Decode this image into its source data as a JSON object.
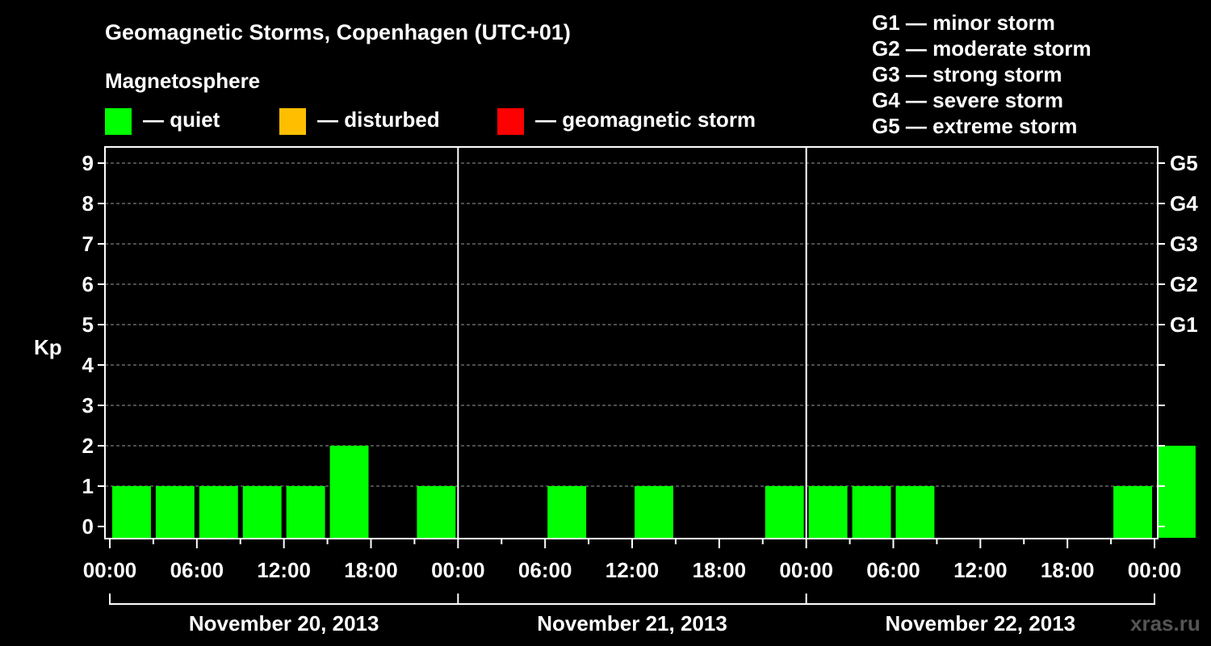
{
  "chart_data": {
    "type": "bar",
    "title": "Geomagnetic Storms, Copenhagen (UTC+01)",
    "subtitle": "Magnetosphere",
    "ylabel": "Kp",
    "ylim": [
      0,
      9
    ],
    "yticks": [
      "0",
      "1",
      "2",
      "3",
      "4",
      "5",
      "6",
      "7",
      "8",
      "9"
    ],
    "right_ticks": [
      {
        "kp": 5,
        "label": "G1"
      },
      {
        "kp": 6,
        "label": "G2"
      },
      {
        "kp": 7,
        "label": "G3"
      },
      {
        "kp": 8,
        "label": "G4"
      },
      {
        "kp": 9,
        "label": "G5"
      }
    ],
    "legend": [
      {
        "label": "— quiet",
        "color": "#00ff00"
      },
      {
        "label": "— disturbed",
        "color": "#ffbf00"
      },
      {
        "label": "— geomagnetic storm",
        "color": "#ff0000"
      }
    ],
    "storm_scale": [
      "G1 — minor storm",
      "G2 — moderate storm",
      "G3 — strong storm",
      "G4 — severe storm",
      "G5 — extreme storm"
    ],
    "xticks": [
      "00:00",
      "06:00",
      "12:00",
      "18:00",
      "00:00",
      "06:00",
      "12:00",
      "18:00",
      "00:00",
      "06:00",
      "12:00",
      "18:00",
      "00:00"
    ],
    "days": [
      "November 20, 2013",
      "November 21, 2013",
      "November 22, 2013"
    ],
    "bar_color": "#00ff00",
    "grid": true,
    "watermark": "xras.ru",
    "bars": [
      {
        "start": "2013-11-20 00:00",
        "hours": 3,
        "kp": 1
      },
      {
        "start": "2013-11-20 03:00",
        "hours": 3,
        "kp": 1
      },
      {
        "start": "2013-11-20 06:00",
        "hours": 3,
        "kp": 1
      },
      {
        "start": "2013-11-20 09:00",
        "hours": 3,
        "kp": 1
      },
      {
        "start": "2013-11-20 12:00",
        "hours": 3,
        "kp": 1
      },
      {
        "start": "2013-11-20 15:00",
        "hours": 3,
        "kp": 2
      },
      {
        "start": "2013-11-20 21:00",
        "hours": 3,
        "kp": 1
      },
      {
        "start": "2013-11-21 06:00",
        "hours": 3,
        "kp": 1
      },
      {
        "start": "2013-11-21 12:00",
        "hours": 3,
        "kp": 1
      },
      {
        "start": "2013-11-21 21:00",
        "hours": 3,
        "kp": 1
      },
      {
        "start": "2013-11-22 00:00",
        "hours": 3,
        "kp": 1
      },
      {
        "start": "2013-11-22 03:00",
        "hours": 3,
        "kp": 1
      },
      {
        "start": "2013-11-22 06:00",
        "hours": 3,
        "kp": 1
      },
      {
        "start": "2013-11-22 21:00",
        "hours": 3,
        "kp": 1
      },
      {
        "start": "2013-11-23 00:00",
        "hours": 3,
        "kp": 2
      }
    ]
  }
}
